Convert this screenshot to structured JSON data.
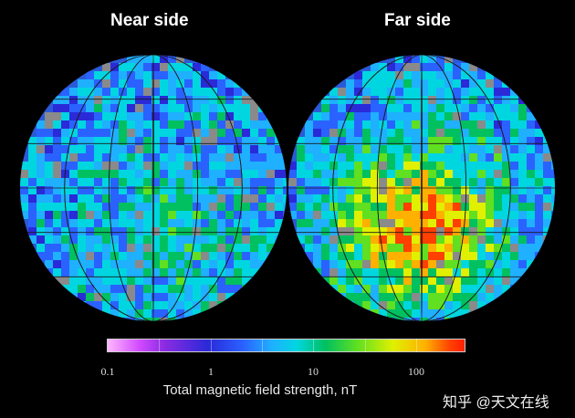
{
  "titles": {
    "near": "Near side",
    "far": "Far side"
  },
  "colorbar": {
    "scale": "log",
    "ticks": [
      "0.1",
      "1",
      "10",
      "100"
    ],
    "label": "Total magnetic field strength, nT",
    "colors": [
      "#ffb6ff",
      "#d04aff",
      "#8a2be2",
      "#2a2ad8",
      "#2a62ff",
      "#1fb0ff",
      "#00d6e0",
      "#00c060",
      "#60e020",
      "#e0f000",
      "#ffb000",
      "#ff4000"
    ]
  },
  "watermark": "知乎 @天文在线"
}
